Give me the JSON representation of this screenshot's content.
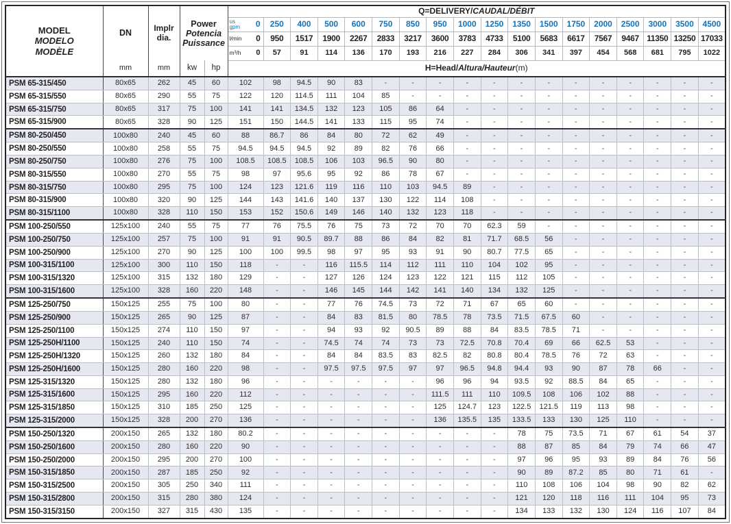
{
  "colors": {
    "accent_blue": "#1273b8",
    "stripe": "#e6e8f1",
    "text": "#231f20"
  },
  "header": {
    "model": {
      "en": "MODEL",
      "es": "MODELO",
      "fr": "MODÈLE"
    },
    "dn": {
      "label": "DN",
      "unit": "mm"
    },
    "impeller": {
      "line1": "Implr",
      "line2": "dia.",
      "unit": "mm"
    },
    "power": {
      "en": "Power",
      "es": "Potencia",
      "fr": "Puissance",
      "kw": "kw",
      "hp": "hp"
    },
    "q_title": {
      "upright": "Q=DELIVERY/",
      "italic": "CAUDAL/DÉBIT"
    },
    "h_title": {
      "upright": "H=Head/",
      "italic": "Altura/Hauteur",
      "suffix": "(m)"
    },
    "flow_rows": [
      {
        "id": "gpm-row",
        "name": "flow-gpm",
        "cls": "gpm",
        "unit": [
          "us",
          "gpm"
        ],
        "values": [
          "0",
          "250",
          "400",
          "500",
          "600",
          "750",
          "850",
          "950",
          "1000",
          "1250",
          "1350",
          "1500",
          "1750",
          "2000",
          "2500",
          "3000",
          "3500",
          "4500"
        ]
      },
      {
        "id": "lmin-row",
        "name": "flow-lmin",
        "cls": "lmin",
        "unit": [
          "l/min"
        ],
        "values": [
          "0",
          "950",
          "1517",
          "1900",
          "2267",
          "2833",
          "3217",
          "3600",
          "3783",
          "4733",
          "5100",
          "5683",
          "6617",
          "7567",
          "9467",
          "11350",
          "13250",
          "17033"
        ]
      },
      {
        "id": "m3h-row",
        "name": "flow-m3h",
        "cls": "m3h",
        "unit": [
          "m³/h"
        ],
        "values": [
          "0",
          "57",
          "91",
          "114",
          "136",
          "170",
          "193",
          "216",
          "227",
          "284",
          "306",
          "341",
          "397",
          "454",
          "568",
          "681",
          "795",
          "1022"
        ]
      }
    ]
  },
  "rows": [
    {
      "model": "PSM 65-315/450",
      "dn": "80x65",
      "impeller": "262",
      "kw": "45",
      "hp": "60",
      "group": false,
      "h": [
        "102",
        "98",
        "94.5",
        "90",
        "83",
        "-",
        "-",
        "-",
        "-",
        "-",
        "-",
        "-",
        "-",
        "-",
        "-",
        "-",
        "-",
        "-"
      ]
    },
    {
      "model": "PSM 65-315/550",
      "dn": "80x65",
      "impeller": "290",
      "kw": "55",
      "hp": "75",
      "group": false,
      "h": [
        "122",
        "120",
        "114.5",
        "111",
        "104",
        "85",
        "-",
        "-",
        "-",
        "-",
        "-",
        "-",
        "-",
        "-",
        "-",
        "-",
        "-",
        "-"
      ]
    },
    {
      "model": "PSM 65-315/750",
      "dn": "80x65",
      "impeller": "317",
      "kw": "75",
      "hp": "100",
      "group": false,
      "h": [
        "141",
        "141",
        "134.5",
        "132",
        "123",
        "105",
        "86",
        "64",
        "-",
        "-",
        "-",
        "-",
        "-",
        "-",
        "-",
        "-",
        "-",
        "-"
      ]
    },
    {
      "model": "PSM 65-315/900",
      "dn": "80x65",
      "impeller": "328",
      "kw": "90",
      "hp": "125",
      "group": false,
      "h": [
        "151",
        "150",
        "144.5",
        "141",
        "133",
        "115",
        "95",
        "74",
        "-",
        "-",
        "-",
        "-",
        "-",
        "-",
        "-",
        "-",
        "-",
        "-"
      ]
    },
    {
      "model": "PSM 80-250/450",
      "dn": "100x80",
      "impeller": "240",
      "kw": "45",
      "hp": "60",
      "group": true,
      "h": [
        "88",
        "86.7",
        "86",
        "84",
        "80",
        "72",
        "62",
        "49",
        "-",
        "-",
        "-",
        "-",
        "-",
        "-",
        "-",
        "-",
        "-",
        "-"
      ]
    },
    {
      "model": "PSM 80-250/550",
      "dn": "100x80",
      "impeller": "258",
      "kw": "55",
      "hp": "75",
      "group": false,
      "h": [
        "94.5",
        "94.5",
        "94.5",
        "92",
        "89",
        "82",
        "76",
        "66",
        "-",
        "-",
        "-",
        "-",
        "-",
        "-",
        "-",
        "-",
        "-",
        "-"
      ]
    },
    {
      "model": "PSM 80-250/750",
      "dn": "100x80",
      "impeller": "276",
      "kw": "75",
      "hp": "100",
      "group": false,
      "h": [
        "108.5",
        "108.5",
        "108.5",
        "106",
        "103",
        "96.5",
        "90",
        "80",
        "-",
        "-",
        "-",
        "-",
        "-",
        "-",
        "-",
        "-",
        "-",
        "-"
      ]
    },
    {
      "model": "PSM 80-315/550",
      "dn": "100x80",
      "impeller": "270",
      "kw": "55",
      "hp": "75",
      "group": false,
      "h": [
        "98",
        "97",
        "95.6",
        "95",
        "92",
        "86",
        "78",
        "67",
        "-",
        "-",
        "-",
        "-",
        "-",
        "-",
        "-",
        "-",
        "-",
        "-"
      ]
    },
    {
      "model": "PSM 80-315/750",
      "dn": "100x80",
      "impeller": "295",
      "kw": "75",
      "hp": "100",
      "group": false,
      "h": [
        "124",
        "123",
        "121.6",
        "119",
        "116",
        "110",
        "103",
        "94.5",
        "89",
        "-",
        "-",
        "-",
        "-",
        "-",
        "-",
        "-",
        "-",
        "-"
      ]
    },
    {
      "model": "PSM 80-315/900",
      "dn": "100x80",
      "impeller": "320",
      "kw": "90",
      "hp": "125",
      "group": false,
      "h": [
        "144",
        "143",
        "141.6",
        "140",
        "137",
        "130",
        "122",
        "114",
        "108",
        "-",
        "-",
        "-",
        "-",
        "-",
        "-",
        "-",
        "-",
        "-"
      ]
    },
    {
      "model": "PSM 80-315/1100",
      "dn": "100x80",
      "impeller": "328",
      "kw": "110",
      "hp": "150",
      "group": false,
      "h": [
        "153",
        "152",
        "150.6",
        "149",
        "146",
        "140",
        "132",
        "123",
        "118",
        "-",
        "-",
        "-",
        "-",
        "-",
        "-",
        "-",
        "-",
        "-"
      ]
    },
    {
      "model": "PSM 100-250/550",
      "dn": "125x100",
      "impeller": "240",
      "kw": "55",
      "hp": "75",
      "group": true,
      "h": [
        "77",
        "76",
        "75.5",
        "76",
        "75",
        "73",
        "72",
        "70",
        "70",
        "62.3",
        "59",
        "-",
        "-",
        "-",
        "-",
        "-",
        "-",
        "-"
      ]
    },
    {
      "model": "PSM 100-250/750",
      "dn": "125x100",
      "impeller": "257",
      "kw": "75",
      "hp": "100",
      "group": false,
      "h": [
        "91",
        "91",
        "90.5",
        "89.7",
        "88",
        "86",
        "84",
        "82",
        "81",
        "71.7",
        "68.5",
        "56",
        "-",
        "-",
        "-",
        "-",
        "-",
        "-"
      ]
    },
    {
      "model": "PSM 100-250/900",
      "dn": "125x100",
      "impeller": "270",
      "kw": "90",
      "hp": "125",
      "group": false,
      "h": [
        "100",
        "100",
        "99.5",
        "98",
        "97",
        "95",
        "93",
        "91",
        "90",
        "80.7",
        "77.5",
        "65",
        "-",
        "-",
        "-",
        "-",
        "-",
        "-"
      ]
    },
    {
      "model": "PSM 100-315/1100",
      "dn": "125x100",
      "impeller": "300",
      "kw": "110",
      "hp": "150",
      "group": false,
      "h": [
        "118",
        "-",
        "-",
        "116",
        "115.5",
        "114",
        "112",
        "111",
        "110",
        "104",
        "102",
        "95",
        "-",
        "-",
        "-",
        "-",
        "-",
        "-"
      ]
    },
    {
      "model": "PSM 100-315/1320",
      "dn": "125x100",
      "impeller": "315",
      "kw": "132",
      "hp": "180",
      "group": false,
      "h": [
        "129",
        "-",
        "-",
        "127",
        "126",
        "124",
        "123",
        "122",
        "121",
        "115",
        "112",
        "105",
        "-",
        "-",
        "-",
        "-",
        "-",
        "-"
      ]
    },
    {
      "model": "PSM 100-315/1600",
      "dn": "125x100",
      "impeller": "328",
      "kw": "160",
      "hp": "220",
      "group": false,
      "h": [
        "148",
        "-",
        "-",
        "146",
        "145",
        "144",
        "142",
        "141",
        "140",
        "134",
        "132",
        "125",
        "-",
        "-",
        "-",
        "-",
        "-",
        "-"
      ]
    },
    {
      "model": "PSM 125-250/750",
      "dn": "150x125",
      "impeller": "255",
      "kw": "75",
      "hp": "100",
      "group": true,
      "h": [
        "80",
        "-",
        "-",
        "77",
        "76",
        "74.5",
        "73",
        "72",
        "71",
        "67",
        "65",
        "60",
        "-",
        "-",
        "-",
        "-",
        "-",
        "-"
      ]
    },
    {
      "model": "PSM 125-250/900",
      "dn": "150x125",
      "impeller": "265",
      "kw": "90",
      "hp": "125",
      "group": false,
      "h": [
        "87",
        "-",
        "-",
        "84",
        "83",
        "81.5",
        "80",
        "78.5",
        "78",
        "73.5",
        "71.5",
        "67.5",
        "60",
        "-",
        "-",
        "-",
        "-",
        "-"
      ]
    },
    {
      "model": "PSM 125-250/1100",
      "dn": "150x125",
      "impeller": "274",
      "kw": "110",
      "hp": "150",
      "group": false,
      "h": [
        "97",
        "-",
        "-",
        "94",
        "93",
        "92",
        "90.5",
        "89",
        "88",
        "84",
        "83.5",
        "78.5",
        "71",
        "-",
        "-",
        "-",
        "-",
        "-"
      ]
    },
    {
      "model": "PSM 125-250H/1100",
      "dn": "150x125",
      "impeller": "240",
      "kw": "110",
      "hp": "150",
      "group": false,
      "h": [
        "74",
        "-",
        "-",
        "74.5",
        "74",
        "74",
        "73",
        "73",
        "72.5",
        "70.8",
        "70.4",
        "69",
        "66",
        "62.5",
        "53",
        "-",
        "-",
        "-"
      ]
    },
    {
      "model": "PSM 125-250H/1320",
      "dn": "150x125",
      "impeller": "260",
      "kw": "132",
      "hp": "180",
      "group": false,
      "h": [
        "84",
        "-",
        "-",
        "84",
        "84",
        "83.5",
        "83",
        "82.5",
        "82",
        "80.8",
        "80.4",
        "78.5",
        "76",
        "72",
        "63",
        "-",
        "-",
        "-"
      ]
    },
    {
      "model": "PSM 125-250H/1600",
      "dn": "150x125",
      "impeller": "280",
      "kw": "160",
      "hp": "220",
      "group": false,
      "h": [
        "98",
        "-",
        "-",
        "97.5",
        "97.5",
        "97.5",
        "97",
        "97",
        "96.5",
        "94.8",
        "94.4",
        "93",
        "90",
        "87",
        "78",
        "66",
        "-",
        "-"
      ]
    },
    {
      "model": "PSM 125-315/1320",
      "dn": "150x125",
      "impeller": "280",
      "kw": "132",
      "hp": "180",
      "group": false,
      "h": [
        "96",
        "-",
        "-",
        "-",
        "-",
        "-",
        "-",
        "96",
        "96",
        "94",
        "93.5",
        "92",
        "88.5",
        "84",
        "65",
        "-",
        "-",
        "-"
      ]
    },
    {
      "model": "PSM 125-315/1600",
      "dn": "150x125",
      "impeller": "295",
      "kw": "160",
      "hp": "220",
      "group": false,
      "h": [
        "112",
        "-",
        "-",
        "-",
        "-",
        "-",
        "-",
        "111.5",
        "111",
        "110",
        "109.5",
        "108",
        "106",
        "102",
        "88",
        "-",
        "-",
        "-"
      ]
    },
    {
      "model": "PSM 125-315/1850",
      "dn": "150x125",
      "impeller": "310",
      "kw": "185",
      "hp": "250",
      "group": false,
      "h": [
        "125",
        "-",
        "-",
        "-",
        "-",
        "-",
        "-",
        "125",
        "124.7",
        "123",
        "122.5",
        "121.5",
        "119",
        "113",
        "98",
        "-",
        "-",
        "-"
      ]
    },
    {
      "model": "PSM 125-315/2000",
      "dn": "150x125",
      "impeller": "328",
      "kw": "200",
      "hp": "270",
      "group": false,
      "h": [
        "136",
        "-",
        "-",
        "-",
        "-",
        "-",
        "-",
        "136",
        "135.5",
        "135",
        "133.5",
        "133",
        "130",
        "125",
        "110",
        "-",
        "-",
        "-"
      ]
    },
    {
      "model": "PSM 150-250/1320",
      "dn": "200x150",
      "impeller": "265",
      "kw": "132",
      "hp": "180",
      "group": true,
      "h": [
        "80.2",
        "-",
        "-",
        "-",
        "-",
        "-",
        "-",
        "-",
        "-",
        "-",
        "78",
        "75",
        "73.5",
        "71",
        "67",
        "61",
        "54",
        "37"
      ]
    },
    {
      "model": "PSM 150-250/1600",
      "dn": "200x150",
      "impeller": "280",
      "kw": "160",
      "hp": "220",
      "group": false,
      "h": [
        "90",
        "-",
        "-",
        "-",
        "-",
        "-",
        "-",
        "-",
        "-",
        "-",
        "88",
        "87",
        "85",
        "84",
        "79",
        "74",
        "66",
        "47"
      ]
    },
    {
      "model": "PSM 150-250/2000",
      "dn": "200x150",
      "impeller": "295",
      "kw": "200",
      "hp": "270",
      "group": false,
      "h": [
        "100",
        "-",
        "-",
        "-",
        "-",
        "-",
        "-",
        "-",
        "-",
        "-",
        "97",
        "96",
        "95",
        "93",
        "89",
        "84",
        "76",
        "56"
      ]
    },
    {
      "model": "PSM 150-315/1850",
      "dn": "200x150",
      "impeller": "287",
      "kw": "185",
      "hp": "250",
      "group": false,
      "h": [
        "92",
        "-",
        "-",
        "-",
        "-",
        "-",
        "-",
        "-",
        "-",
        "-",
        "90",
        "89",
        "87.2",
        "85",
        "80",
        "71",
        "61",
        "-"
      ]
    },
    {
      "model": "PSM 150-315/2500",
      "dn": "200x150",
      "impeller": "305",
      "kw": "250",
      "hp": "340",
      "group": false,
      "h": [
        "111",
        "-",
        "-",
        "-",
        "-",
        "-",
        "-",
        "-",
        "-",
        "-",
        "110",
        "108",
        "106",
        "104",
        "98",
        "90",
        "82",
        "62"
      ]
    },
    {
      "model": "PSM 150-315/2800",
      "dn": "200x150",
      "impeller": "315",
      "kw": "280",
      "hp": "380",
      "group": false,
      "h": [
        "124",
        "-",
        "-",
        "-",
        "-",
        "-",
        "-",
        "-",
        "-",
        "-",
        "121",
        "120",
        "118",
        "116",
        "111",
        "104",
        "95",
        "73"
      ]
    },
    {
      "model": "PSM 150-315/3150",
      "dn": "200x150",
      "impeller": "327",
      "kw": "315",
      "hp": "430",
      "group": false,
      "h": [
        "135",
        "-",
        "-",
        "-",
        "-",
        "-",
        "-",
        "-",
        "-",
        "-",
        "134",
        "133",
        "132",
        "130",
        "124",
        "116",
        "107",
        "84"
      ]
    }
  ]
}
